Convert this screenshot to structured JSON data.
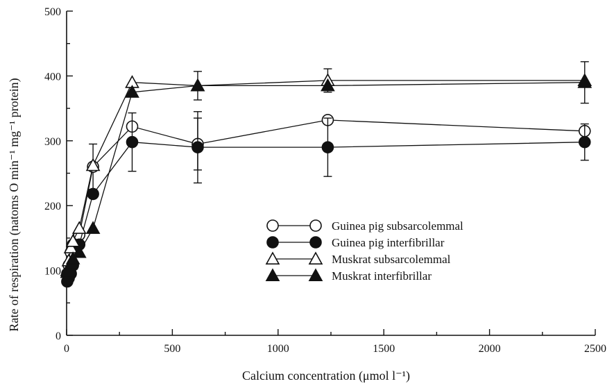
{
  "chart_data": {
    "type": "line",
    "xlabel": "Calcium concentration (μmol l⁻¹)",
    "ylabel": "Rate of respiration (natoms O min⁻¹ mg⁻¹ protein)",
    "xlim": [
      0,
      2500
    ],
    "ylim": [
      0,
      500
    ],
    "xticks": [
      0,
      500,
      1000,
      1500,
      2000,
      2500
    ],
    "yticks": [
      0,
      100,
      200,
      300,
      400,
      500
    ],
    "grid": false,
    "legend_position": "center-right",
    "series": [
      {
        "name": "Guinea pig subsarcolemmal",
        "marker": "circle-open",
        "x": [
          3,
          10,
          20,
          30,
          60,
          125,
          310,
          620,
          1235,
          2450
        ],
        "y": [
          95,
          108,
          128,
          140,
          155,
          260,
          322,
          295,
          332,
          315
        ],
        "err": [
          0,
          0,
          0,
          0,
          0,
          35,
          0,
          40,
          0,
          0
        ]
      },
      {
        "name": "Guinea pig interfibrillar",
        "marker": "circle-filled",
        "x": [
          3,
          10,
          20,
          30,
          60,
          125,
          310,
          620,
          1235,
          2450
        ],
        "y": [
          83,
          88,
          95,
          108,
          140,
          218,
          298,
          290,
          290,
          298
        ],
        "err": [
          0,
          0,
          0,
          0,
          0,
          0,
          45,
          55,
          45,
          28
        ]
      },
      {
        "name": "Muskrat subsarcolemmal",
        "marker": "triangle-open",
        "x": [
          3,
          10,
          20,
          30,
          60,
          125,
          310,
          620,
          1235,
          2450
        ],
        "y": [
          100,
          115,
          135,
          145,
          165,
          262,
          390,
          385,
          393,
          393
        ],
        "err": [
          0,
          0,
          0,
          0,
          0,
          0,
          0,
          0,
          18,
          0
        ]
      },
      {
        "name": "Muskrat interfibrillar",
        "marker": "triangle-filled",
        "x": [
          3,
          10,
          20,
          30,
          60,
          125,
          310,
          620,
          1235,
          2450
        ],
        "y": [
          97,
          100,
          110,
          118,
          128,
          165,
          375,
          385,
          385,
          390
        ],
        "err": [
          0,
          0,
          0,
          0,
          0,
          0,
          0,
          22,
          0,
          32
        ]
      }
    ]
  }
}
